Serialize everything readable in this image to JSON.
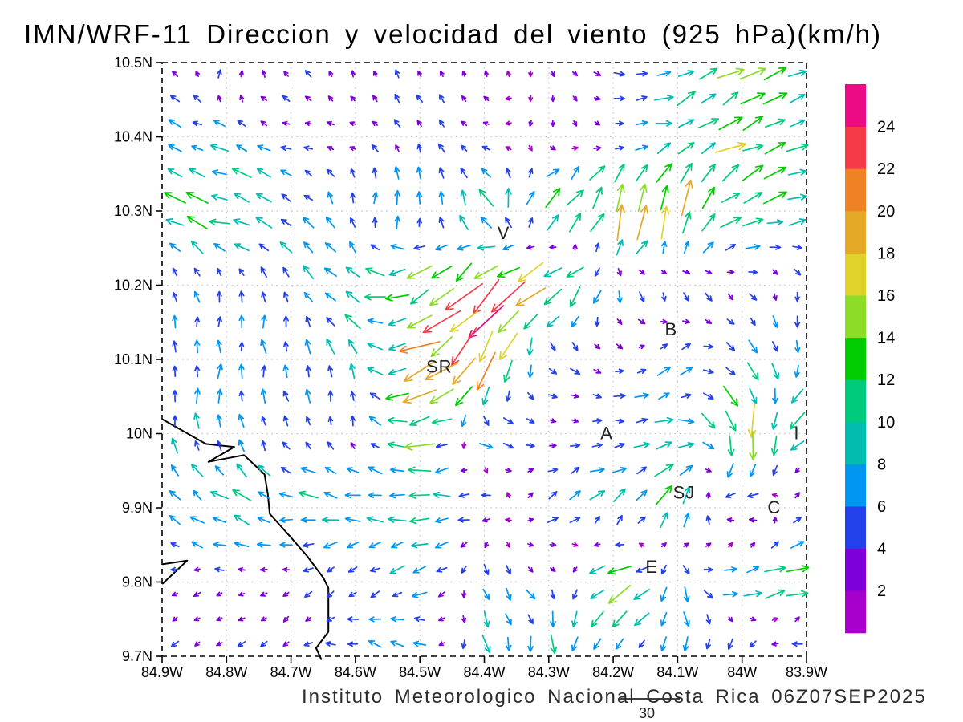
{
  "header": {
    "title": "IMN/WRF-11 Direccion y velocidad del viento (925 hPa)(km/h)"
  },
  "footer": {
    "caption": "Instituto Meteorologico Nacional Costa Rica 06Z07SEP2025"
  },
  "chart_data": {
    "type": "vector_field",
    "title": "IMN/WRF-11 Direccion y velocidad del viento (925 hPa)(km/h)",
    "units": "km/h",
    "level": "925 hPa",
    "valid_time": "06Z07SEP2025",
    "x_axis": {
      "labels": [
        "84.9W",
        "84.8W",
        "84.7W",
        "84.6W",
        "84.5W",
        "84.4W",
        "84.3W",
        "84.2W",
        "84.1W",
        "84W",
        "83.9W"
      ],
      "lons": [
        84.9,
        84.8,
        84.7,
        84.6,
        84.5,
        84.4,
        84.3,
        84.2,
        84.1,
        84.0,
        83.9
      ],
      "range": [
        84.9,
        83.9
      ]
    },
    "y_axis": {
      "labels": [
        "10.5N",
        "10.4N",
        "10.3N",
        "10.2N",
        "10.1N",
        "10N",
        "9.9N",
        "9.8N",
        "9.7N"
      ],
      "lats": [
        10.5,
        10.4,
        10.3,
        10.2,
        10.1,
        10.0,
        9.9,
        9.8,
        9.7
      ],
      "range": [
        9.7,
        10.5
      ]
    },
    "grid": "dotted",
    "colorbar": {
      "levels": [
        2,
        4,
        6,
        8,
        10,
        12,
        14,
        16,
        18,
        20,
        22,
        24
      ],
      "colors": [
        "#a800cc",
        "#7d00d9",
        "#2440ea",
        "#0096f2",
        "#00bdb0",
        "#00cb7c",
        "#00cc00",
        "#8cdc28",
        "#e0d22a",
        "#e5a928",
        "#ef8224",
        "#f43b47",
        "#ec0b84"
      ],
      "position": "right"
    },
    "reference_vector": {
      "speed_kmh": 30,
      "label": "30"
    },
    "cities": [
      {
        "label": "V",
        "lon": 84.37,
        "lat": 10.27
      },
      {
        "label": "SR",
        "lon": 84.47,
        "lat": 10.09
      },
      {
        "label": "B",
        "lon": 84.11,
        "lat": 10.14
      },
      {
        "label": "A",
        "lon": 84.21,
        "lat": 10.0
      },
      {
        "label": "SJ",
        "lon": 84.09,
        "lat": 9.92
      },
      {
        "label": "C",
        "lon": 83.95,
        "lat": 9.9
      },
      {
        "label": "E",
        "lon": 84.14,
        "lat": 9.82
      },
      {
        "label": "I",
        "lon": 83.915,
        "lat": 10.0
      }
    ],
    "coastlines": [
      [
        [
          84.899,
          10.019
        ],
        [
          84.832,
          9.986
        ],
        [
          84.788,
          9.982
        ],
        [
          84.828,
          9.962
        ],
        [
          84.773,
          9.971
        ],
        [
          84.741,
          9.945
        ],
        [
          84.736,
          9.919
        ],
        [
          84.733,
          9.892
        ],
        [
          84.7,
          9.86
        ],
        [
          84.675,
          9.835
        ],
        [
          84.65,
          9.806
        ],
        [
          84.642,
          9.792
        ],
        [
          84.642,
          9.733
        ],
        [
          84.661,
          9.711
        ],
        [
          84.653,
          9.696
        ]
      ],
      [
        [
          84.899,
          9.824
        ],
        [
          84.861,
          9.829
        ],
        [
          84.899,
          9.798
        ]
      ]
    ],
    "wind_grid": {
      "comment": "coarse estimate of plotted field; dir = direction arrow points toward, degrees CCW from east; spd = km/h",
      "lons": [
        84.9,
        84.8,
        84.7,
        84.6,
        84.5,
        84.4,
        84.3,
        84.2,
        84.1,
        84.0,
        83.9
      ],
      "lats": [
        10.5,
        10.4,
        10.3,
        10.2,
        10.1,
        10.0,
        9.9,
        9.8,
        9.7
      ],
      "vectors": [
        [
          [
            150,
            3
          ],
          [
            60,
            5
          ],
          [
            135,
            4
          ],
          [
            100,
            3
          ],
          [
            130,
            4
          ],
          [
            95,
            3
          ],
          [
            -80,
            3
          ],
          [
            0,
            5
          ],
          [
            30,
            10
          ],
          [
            25,
            12
          ],
          [
            10,
            8
          ]
        ],
        [
          [
            160,
            8
          ],
          [
            150,
            7
          ],
          [
            170,
            4
          ],
          [
            160,
            4
          ],
          [
            120,
            5
          ],
          [
            170,
            3
          ],
          [
            -90,
            3
          ],
          [
            -20,
            4
          ],
          [
            15,
            10
          ],
          [
            30,
            14
          ],
          [
            20,
            10
          ]
        ],
        [
          [
            155,
            10
          ],
          [
            165,
            12
          ],
          [
            150,
            8
          ],
          [
            90,
            6
          ],
          [
            75,
            8
          ],
          [
            120,
            12
          ],
          [
            45,
            14
          ],
          [
            70,
            20
          ],
          [
            80,
            20
          ],
          [
            25,
            12
          ],
          [
            15,
            10
          ]
        ],
        [
          [
            120,
            5
          ],
          [
            90,
            5
          ],
          [
            105,
            6
          ],
          [
            150,
            12
          ],
          [
            215,
            16
          ],
          [
            225,
            20
          ],
          [
            215,
            20
          ],
          [
            -85,
            8
          ],
          [
            -70,
            6
          ],
          [
            -30,
            4
          ],
          [
            -90,
            5
          ]
        ],
        [
          [
            90,
            6
          ],
          [
            90,
            6
          ],
          [
            95,
            6
          ],
          [
            110,
            8
          ],
          [
            205,
            18
          ],
          [
            235,
            22
          ],
          [
            -30,
            6
          ],
          [
            -20,
            4
          ],
          [
            60,
            8
          ],
          [
            -45,
            8
          ],
          [
            -90,
            6
          ]
        ],
        [
          [
            95,
            7
          ],
          [
            90,
            7
          ],
          [
            115,
            6
          ],
          [
            95,
            5
          ],
          [
            185,
            14
          ],
          [
            -20,
            8
          ],
          [
            10,
            3
          ],
          [
            0,
            6
          ],
          [
            15,
            10
          ],
          [
            -80,
            18
          ],
          [
            215,
            12
          ]
        ],
        [
          [
            140,
            8
          ],
          [
            155,
            10
          ],
          [
            170,
            10
          ],
          [
            175,
            8
          ],
          [
            178,
            8
          ],
          [
            180,
            6
          ],
          [
            30,
            6
          ],
          [
            40,
            8
          ],
          [
            60,
            12
          ],
          [
            185,
            10
          ],
          [
            45,
            8
          ]
        ],
        [
          [
            210,
            3
          ],
          [
            190,
            3
          ],
          [
            200,
            3
          ],
          [
            230,
            5
          ],
          [
            200,
            8
          ],
          [
            -60,
            6
          ],
          [
            -45,
            5
          ],
          [
            200,
            16
          ],
          [
            -85,
            8
          ],
          [
            20,
            12
          ],
          [
            10,
            12
          ]
        ],
        [
          [
            220,
            4
          ],
          [
            210,
            4
          ],
          [
            230,
            4
          ],
          [
            160,
            8
          ],
          [
            150,
            6
          ],
          [
            -70,
            8
          ],
          [
            -90,
            10
          ],
          [
            -120,
            6
          ],
          [
            -90,
            6
          ],
          [
            -135,
            8
          ],
          [
            170,
            8
          ]
        ]
      ]
    }
  }
}
